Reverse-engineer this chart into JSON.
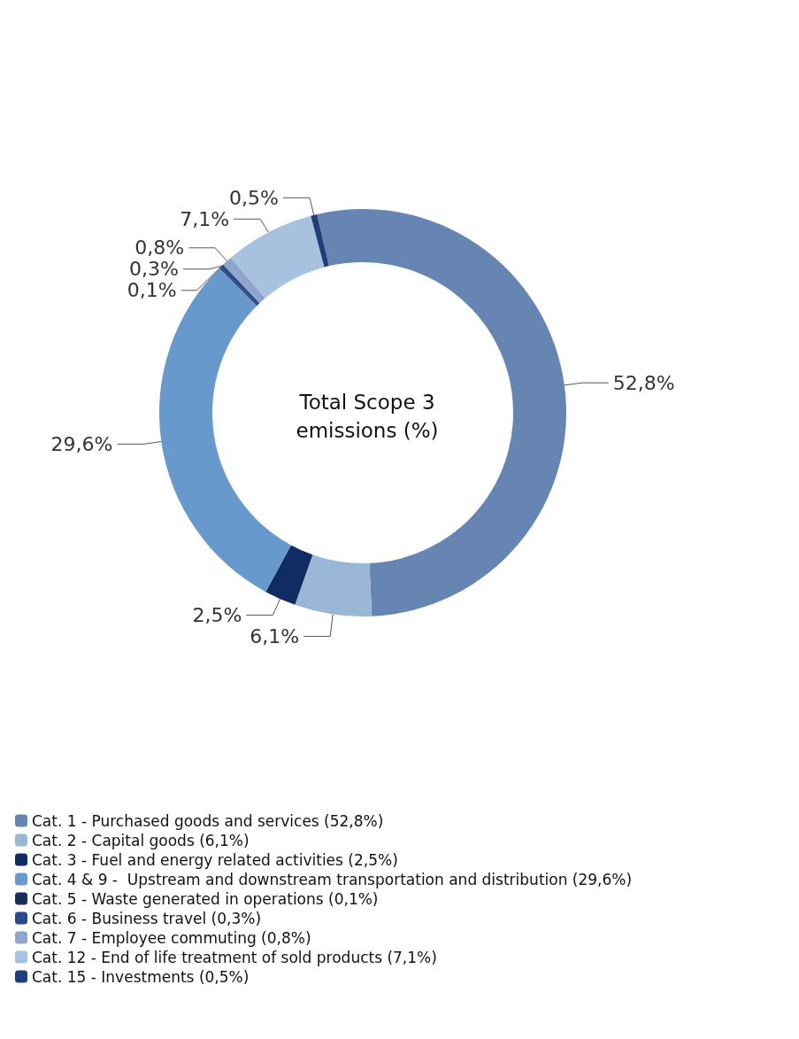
{
  "chart_data": {
    "type": "donut",
    "title": "Total Scope 3 emissions (%)",
    "categories": [
      "Cat. 1 - Purchased goods and services (52,8%)",
      "Cat. 2 - Capital goods (6,1%)",
      "Cat. 3 - Fuel and energy related activities (2,5%)",
      "Cat. 4 & 9 -  Upstream and downstream transportation and distribution (29,6%)",
      "Cat. 5 - Waste generated in operations (0,1%)",
      "Cat. 6 - Business travel (0,3%)",
      "Cat. 7 - Employee commuting (0,8%)",
      "Cat. 12 - End of life treatment of sold products (7,1%)",
      "Cat. 15 - Investments (0,5%)"
    ],
    "values": [
      52.8,
      6.1,
      2.5,
      29.6,
      0.1,
      0.3,
      0.8,
      7.1,
      0.5
    ],
    "value_labels": [
      "52,8%",
      "6,1%",
      "2,5%",
      "29,6%",
      "0,1%",
      "0,3%",
      "0,8%",
      "7,1%",
      "0,5%"
    ],
    "colors": [
      "#6785b3",
      "#9bb7d6",
      "#0f2d62",
      "#6899cc",
      "#1a2e5a",
      "#2b4a8a",
      "#8fa5cc",
      "#a8c1de",
      "#1f3f7a"
    ],
    "legend": "bottom left"
  }
}
